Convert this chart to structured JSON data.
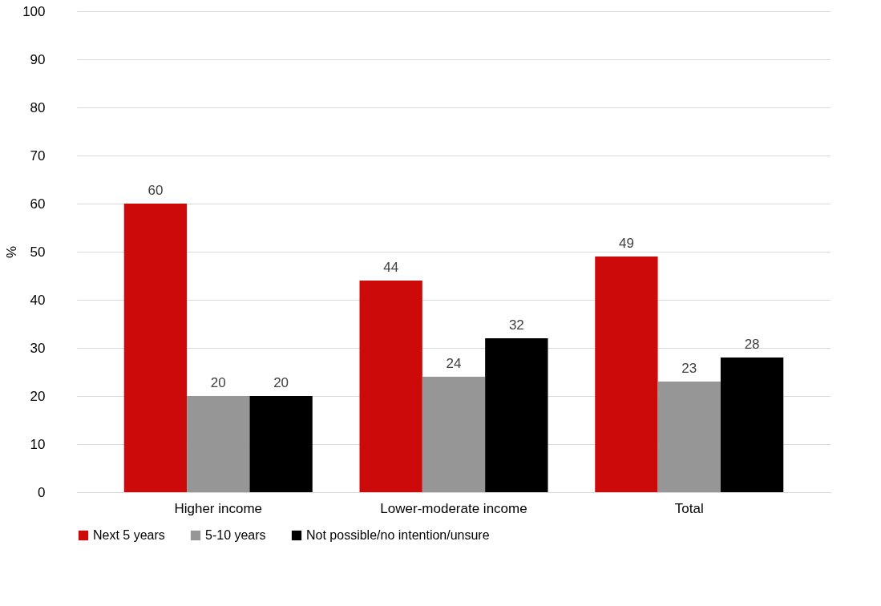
{
  "chart_data": {
    "type": "bar",
    "ylabel": "%",
    "categories": [
      "Higher income",
      "Lower-moderate income",
      "Total"
    ],
    "series": [
      {
        "name": "Next 5 years",
        "color": "#cc0a0a",
        "values": [
          60,
          44,
          49
        ]
      },
      {
        "name": "5-10 years",
        "color": "#969696",
        "values": [
          20,
          24,
          23
        ]
      },
      {
        "name": "Not possible/no intention/unsure",
        "color": "#000000",
        "values": [
          20,
          32,
          28
        ]
      }
    ],
    "ylim": [
      0,
      100
    ],
    "yticks": [
      0,
      10,
      20,
      30,
      40,
      50,
      60,
      70,
      80,
      90,
      100
    ],
    "grid": "y",
    "legend": "bottom",
    "data_labels": true
  }
}
